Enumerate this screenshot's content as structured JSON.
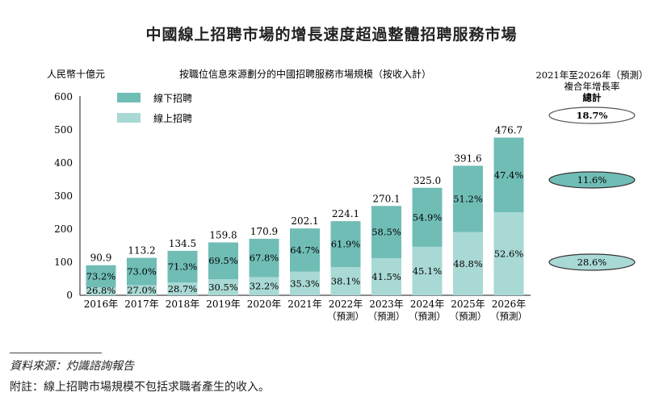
{
  "chart_data": {
    "type": "bar",
    "stacked": true,
    "title": "中國線上招聘市場的增長速度超過整體招聘服務市場",
    "subtitle": "按職位信息來源劃分的中國招聘服務市場規模（按收入計）",
    "ylabel": "人民幣十億元",
    "ylim": [
      0,
      600
    ],
    "yticks": [
      0,
      100,
      200,
      300,
      400,
      500,
      600
    ],
    "categories": [
      "2016年",
      "2017年",
      "2018年",
      "2019年",
      "2020年",
      "2021年",
      "2022年",
      "2023年",
      "2024年",
      "2025年",
      "2026年"
    ],
    "category_sublabels": [
      "",
      "",
      "",
      "",
      "",
      "",
      "（預測）",
      "（預測）",
      "（預測）",
      "（預測）",
      "（預測）"
    ],
    "totals": [
      90.9,
      113.2,
      134.5,
      159.8,
      170.9,
      202.1,
      224.1,
      270.1,
      325.0,
      391.6,
      476.7
    ],
    "total_labels": [
      "90.9",
      "113.2",
      "134.5",
      "159.8",
      "170.9",
      "202.1",
      "224.1",
      "270.1",
      "325.0",
      "391.6",
      "476.7"
    ],
    "series": [
      {
        "name": "線上招聘",
        "color": "#a9d9d4",
        "share_pct": [
          26.8,
          27.0,
          28.7,
          30.5,
          32.2,
          35.3,
          38.1,
          41.5,
          45.1,
          48.8,
          52.6
        ],
        "labels": [
          "26.8%",
          "27.0%",
          "28.7%",
          "30.5%",
          "32.2%",
          "35.3%",
          "38.1%",
          "41.5%",
          "45.1%",
          "48.8%",
          "52.6%"
        ]
      },
      {
        "name": "線下招聘",
        "color": "#70bdb6",
        "share_pct": [
          73.2,
          73.0,
          71.3,
          69.5,
          67.8,
          64.7,
          61.9,
          58.5,
          54.9,
          51.2,
          47.4
        ],
        "labels": [
          "73.2%",
          "73.0%",
          "71.3%",
          "69.5%",
          "67.8%",
          "64.7%",
          "61.9%",
          "58.5%",
          "54.9%",
          "51.2%",
          "47.4%"
        ]
      }
    ],
    "legend": [
      "線下招聘",
      "線上招聘"
    ],
    "legend_placement": "top-left",
    "grid": false,
    "cagr": {
      "header": [
        "2021年至2026年（預測）",
        "複合年增長率",
        "總計"
      ],
      "total": "18.7%",
      "offline": "11.6%",
      "online": "28.6%"
    }
  },
  "footer": {
    "source": "資料來源：灼識諮詢報告",
    "note": "附註：線上招聘市場規模不包括求職者產生的收入。"
  }
}
